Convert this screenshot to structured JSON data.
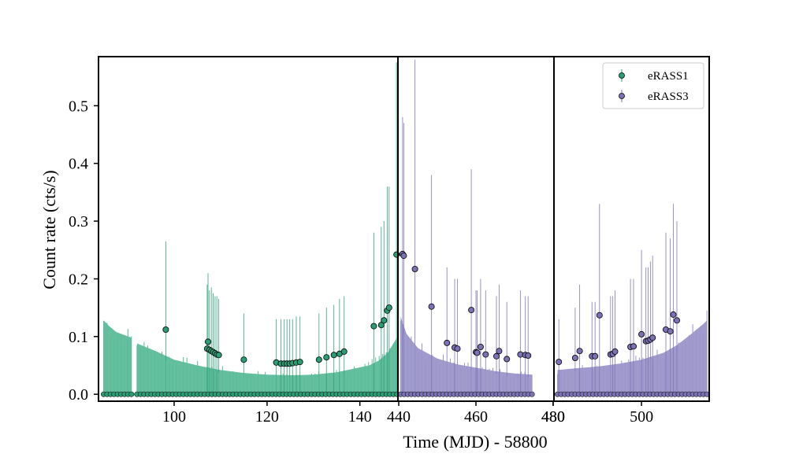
{
  "chart_data": {
    "type": "scatter",
    "xlabel": "Time (MJD) - 58800",
    "ylabel": "Count rate (cts/s)",
    "ylim": [
      -0.012,
      0.585
    ],
    "yticks": [
      0.0,
      0.1,
      0.2,
      0.3,
      0.4,
      0.5
    ],
    "ytick_labels": [
      "0.0",
      "0.1",
      "0.2",
      "0.3",
      "0.4",
      "0.5"
    ],
    "legend": {
      "position": "top-right",
      "entries": [
        {
          "name": "eRASS1",
          "color": "#2a9d74"
        },
        {
          "name": "eRASS3",
          "color": "#7a72b5"
        }
      ]
    },
    "panels": [
      {
        "xlim": [
          83.7,
          148.2
        ],
        "xticks": [
          100,
          120,
          140
        ],
        "xtick_labels": [
          "100",
          "120",
          "140"
        ],
        "series": "eRASS1"
      },
      {
        "xlim": [
          439.8,
          480.2
        ],
        "xticks": [
          440,
          460,
          480
        ],
        "xtick_labels": [
          "440",
          "460",
          "480"
        ],
        "series": "eRASS3"
      },
      {
        "xlim": [
          480.2,
          515.3
        ],
        "xticks": [
          480,
          500
        ],
        "xtick_labels": [
          "480",
          "500"
        ],
        "series": "eRASS3"
      }
    ],
    "series": [
      {
        "name": "eRASS1",
        "color": "#2a9d74",
        "fill_color": "#5cbc9a",
        "detections": [
          [
            98.2,
            0.112,
            0.265
          ],
          [
            107.1,
            0.079,
            0.19
          ],
          [
            107.3,
            0.091,
            0.21
          ],
          [
            107.6,
            0.077,
            0.18
          ],
          [
            108.0,
            0.075,
            0.185
          ],
          [
            108.4,
            0.073,
            0.175
          ],
          [
            108.8,
            0.071,
            0.17
          ],
          [
            109.2,
            0.069,
            0.17
          ],
          [
            109.6,
            0.068,
            0.165
          ],
          [
            115.0,
            0.06,
            0.14
          ],
          [
            122.0,
            0.055,
            0.13
          ],
          [
            123.0,
            0.053,
            0.13
          ],
          [
            123.7,
            0.053,
            0.13
          ],
          [
            124.3,
            0.053,
            0.13
          ],
          [
            124.9,
            0.053,
            0.13
          ],
          [
            125.5,
            0.054,
            0.13
          ],
          [
            126.3,
            0.055,
            0.135
          ],
          [
            127.1,
            0.056,
            0.135
          ],
          [
            131.2,
            0.06,
            0.14
          ],
          [
            132.8,
            0.064,
            0.15
          ],
          [
            134.4,
            0.068,
            0.155
          ],
          [
            135.6,
            0.07,
            0.165
          ],
          [
            136.6,
            0.074,
            0.17
          ],
          [
            143.0,
            0.118,
            0.28
          ],
          [
            144.6,
            0.12,
            0.29
          ],
          [
            145.2,
            0.128,
            0.3
          ],
          [
            145.9,
            0.145,
            0.36
          ],
          [
            146.3,
            0.15,
            0.36
          ],
          [
            147.9,
            0.242,
            0.575
          ]
        ],
        "envelope": {
          "segments": [
            [
              [
                84.8,
                0.128
              ],
              [
                86.0,
                0.118
              ],
              [
                87.5,
                0.108
              ],
              [
                89.5,
                0.102
              ],
              [
                90.8,
                0.098
              ]
            ],
            [
              [
                92.0,
                0.088
              ],
              [
                96.0,
                0.075
              ],
              [
                100.0,
                0.06
              ],
              [
                105.0,
                0.05
              ],
              [
                110.0,
                0.042
              ],
              [
                115.0,
                0.037
              ],
              [
                120.0,
                0.034
              ],
              [
                125.0,
                0.033
              ],
              [
                130.0,
                0.034
              ],
              [
                135.0,
                0.038
              ],
              [
                139.0,
                0.045
              ],
              [
                142.0,
                0.05
              ],
              [
                144.0,
                0.058
              ],
              [
                146.0,
                0.072
              ],
              [
                147.0,
                0.085
              ],
              [
                148.0,
                0.098
              ]
            ]
          ]
        }
      },
      {
        "name": "eRASS3",
        "color": "#7a72b5",
        "fill_color": "#9b96c9",
        "detections": [
          [
            441.0,
            0.243,
            0.48
          ],
          [
            441.3,
            0.24,
            0.47
          ],
          [
            444.2,
            0.217,
            0.58
          ],
          [
            448.5,
            0.152,
            0.38
          ],
          [
            452.5,
            0.089,
            0.22
          ],
          [
            454.5,
            0.081,
            0.2
          ],
          [
            455.2,
            0.079,
            0.2
          ],
          [
            458.8,
            0.146,
            0.39
          ],
          [
            460.0,
            0.073,
            0.18
          ],
          [
            460.3,
            0.072,
            0.18
          ],
          [
            461.2,
            0.082,
            0.2
          ],
          [
            462.5,
            0.069,
            0.18
          ],
          [
            465.3,
            0.066,
            0.17
          ],
          [
            466.0,
            0.075,
            0.19
          ],
          [
            468.0,
            0.061,
            0.16
          ],
          [
            471.5,
            0.069,
            0.18
          ],
          [
            472.8,
            0.068,
            0.17
          ],
          [
            473.5,
            0.067,
            0.17
          ],
          [
            481.3,
            0.056,
            0.13
          ],
          [
            485.0,
            0.063,
            0.15
          ],
          [
            486.0,
            0.075,
            0.19
          ],
          [
            488.8,
            0.066,
            0.16
          ],
          [
            489.5,
            0.066,
            0.16
          ],
          [
            490.5,
            0.137,
            0.33
          ],
          [
            493.0,
            0.069,
            0.17
          ],
          [
            493.5,
            0.07,
            0.17
          ],
          [
            494.0,
            0.074,
            0.18
          ],
          [
            497.5,
            0.082,
            0.2
          ],
          [
            498.2,
            0.083,
            0.2
          ],
          [
            500.0,
            0.104,
            0.25
          ],
          [
            501.0,
            0.092,
            0.22
          ],
          [
            501.5,
            0.093,
            0.22
          ],
          [
            502.0,
            0.095,
            0.23
          ],
          [
            502.5,
            0.098,
            0.24
          ],
          [
            505.5,
            0.112,
            0.28
          ],
          [
            506.5,
            0.109,
            0.27
          ],
          [
            507.2,
            0.138,
            0.33
          ],
          [
            508.0,
            0.128,
            0.3
          ]
        ],
        "envelope": {
          "segments": [
            [
              [
                440.5,
                0.135
              ],
              [
                442.0,
                0.105
              ],
              [
                445.0,
                0.08
              ],
              [
                450.0,
                0.062
              ],
              [
                455.0,
                0.052
              ],
              [
                460.0,
                0.046
              ],
              [
                465.0,
                0.04
              ],
              [
                470.0,
                0.036
              ],
              [
                474.5,
                0.034
              ]
            ],
            [
              [
                481.0,
                0.042
              ],
              [
                485.0,
                0.045
              ],
              [
                490.0,
                0.048
              ],
              [
                495.0,
                0.053
              ],
              [
                500.0,
                0.06
              ],
              [
                505.0,
                0.072
              ],
              [
                508.0,
                0.085
              ],
              [
                511.0,
                0.103
              ],
              [
                514.0,
                0.122
              ],
              [
                514.8,
                0.128
              ]
            ]
          ]
        }
      }
    ]
  }
}
